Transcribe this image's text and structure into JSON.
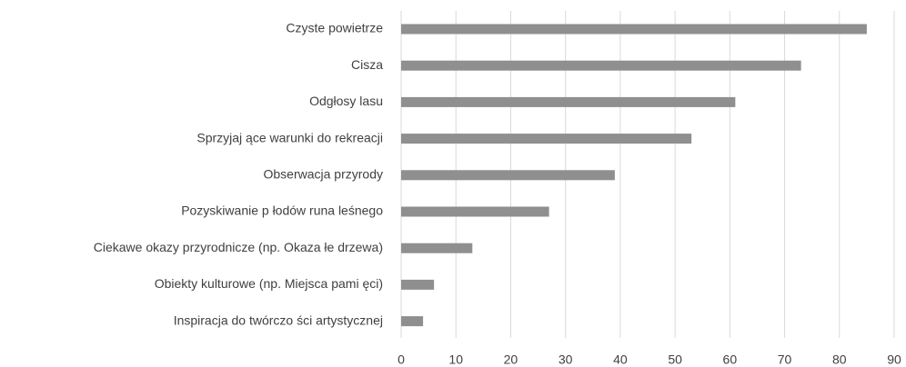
{
  "chart_data": {
    "type": "hbar",
    "categories": [
      "Czyste powietrze",
      "Cisza",
      "Odgłosy lasu",
      "Sprzyjaj ące warunki do rekreacji",
      "Obserwacja przyrody",
      "Pozyskiwanie p łodów runa leśnego",
      "Ciekawe okazy przyrodnicze (np. Okaza  łe drzewa)",
      "Obiekty kulturowe (np. Miejsca pami ęci)",
      "Inspiracja do twórczo ści artystycznej"
    ],
    "values": [
      85,
      73,
      61,
      53,
      39,
      27,
      13,
      6,
      4
    ],
    "color": "#8f8f8f",
    "xlim": [
      0,
      90
    ],
    "xticks": [
      0,
      10,
      20,
      30,
      40,
      50,
      60,
      70,
      80,
      90
    ],
    "grid": true
  }
}
